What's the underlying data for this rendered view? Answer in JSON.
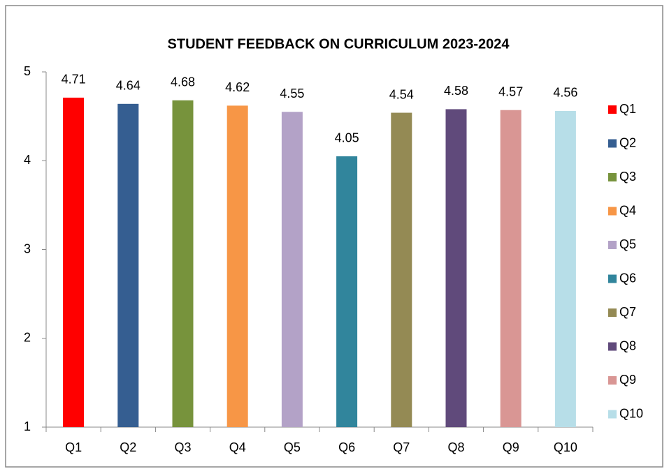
{
  "chart_data": {
    "type": "bar",
    "title": "STUDENT FEEDBACK ON CURRICULUM 2023-2024",
    "categories": [
      "Q1",
      "Q2",
      "Q3",
      "Q4",
      "Q5",
      "Q6",
      "Q7",
      "Q8",
      "Q9",
      "Q10"
    ],
    "values": [
      4.71,
      4.64,
      4.68,
      4.62,
      4.55,
      4.05,
      4.54,
      4.58,
      4.57,
      4.56
    ],
    "colors": [
      "#ff0000",
      "#355e91",
      "#77933c",
      "#f79646",
      "#b3a2c7",
      "#31859c",
      "#948a54",
      "#604a7b",
      "#d99694",
      "#b7dee8"
    ],
    "ylim": [
      1,
      5
    ],
    "yticks": [
      1,
      2,
      3,
      4,
      5
    ],
    "grid": false,
    "legend": "right"
  }
}
